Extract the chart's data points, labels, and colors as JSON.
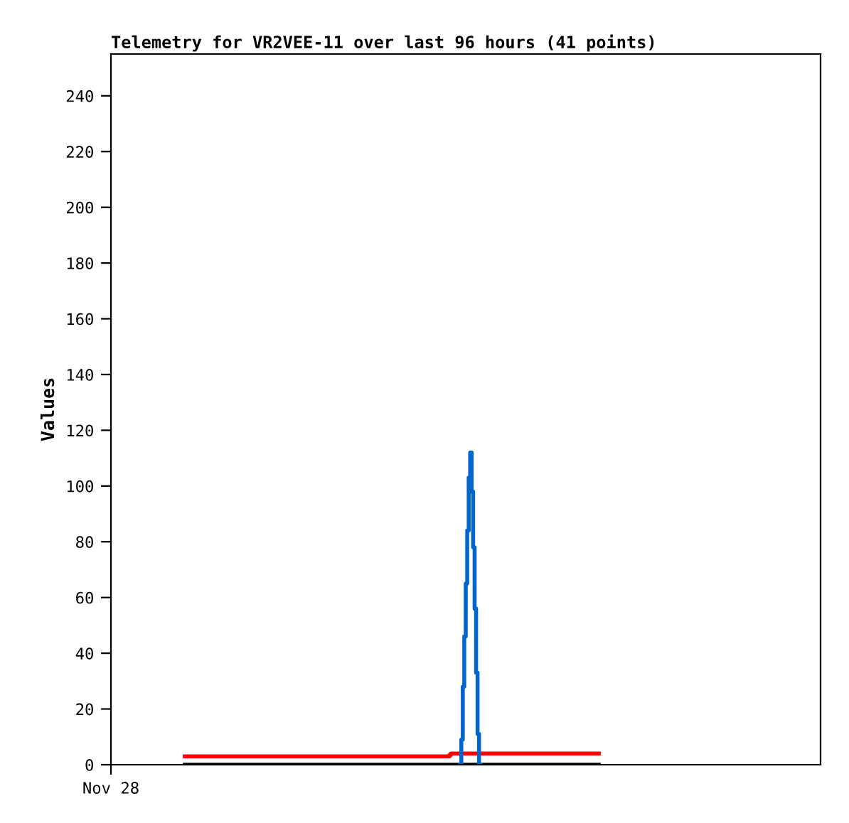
{
  "chart_data": {
    "type": "step",
    "title": "Telemetry for VR2VEE-11 over last 96 hours (41 points)",
    "ylabel": "Values",
    "categories": [
      "Nov 28",
      null,
      null,
      null,
      null,
      null,
      null,
      null,
      null,
      null,
      null,
      null,
      null,
      null,
      null,
      null,
      null,
      null,
      null,
      null,
      null,
      null,
      null,
      null,
      null,
      null,
      null,
      null,
      null,
      null,
      null,
      null,
      null,
      null,
      null,
      null,
      null,
      null,
      null,
      null,
      null,
      null,
      null,
      null,
      null,
      null,
      null,
      null,
      null,
      null,
      null,
      null,
      null,
      null,
      null,
      null,
      null,
      null,
      null,
      null,
      null,
      null,
      null,
      null,
      null,
      null,
      null,
      null,
      null,
      null,
      null,
      null,
      null,
      null,
      null,
      null,
      null,
      null,
      null,
      null,
      null,
      null,
      null,
      null,
      null,
      null,
      null,
      null,
      null,
      null,
      null,
      null,
      null,
      null,
      null,
      null,
      null,
      null,
      null,
      null,
      null,
      null,
      null,
      null,
      null,
      null,
      null,
      null,
      null,
      null,
      null,
      null,
      null,
      null,
      null,
      null,
      null,
      null,
      null,
      null,
      null,
      null,
      null,
      null,
      null,
      null,
      null,
      null,
      null,
      null,
      null,
      null,
      null,
      null,
      null,
      null,
      null,
      null,
      null,
      null,
      null,
      null,
      null,
      null,
      null,
      null,
      null,
      null,
      null,
      null,
      null,
      null,
      null,
      null,
      null,
      null,
      null,
      null,
      null,
      null,
      null,
      null,
      null,
      null,
      null,
      null,
      null,
      null,
      null,
      null,
      null,
      null,
      null,
      null,
      null,
      null,
      null,
      null,
      null,
      null,
      null,
      null,
      null,
      null,
      null,
      null,
      null,
      null,
      null,
      null,
      null,
      null,
      null,
      null,
      null,
      null,
      null,
      null,
      null,
      null,
      null,
      null,
      null,
      null,
      null,
      null,
      null,
      null,
      null,
      null,
      null,
      null,
      null,
      null,
      null,
      null,
      null,
      null,
      null,
      null,
      null,
      null,
      null,
      null,
      null,
      null,
      null,
      null,
      null,
      null,
      null,
      null,
      null,
      null,
      null,
      null,
      null,
      null,
      null,
      null,
      null,
      null,
      null,
      null,
      null,
      null,
      null,
      null,
      null,
      null,
      null,
      null,
      null,
      null,
      null,
      null,
      null,
      null,
      null,
      null,
      null,
      null,
      null,
      null,
      null,
      null,
      null,
      null,
      null,
      null,
      null,
      null,
      null,
      null,
      null,
      null,
      null,
      null,
      null,
      null,
      null,
      null,
      null,
      null,
      null,
      null,
      null,
      null,
      null,
      null,
      null,
      null,
      null,
      null,
      null,
      null,
      null,
      null,
      null,
      null,
      null,
      null,
      null,
      null,
      null,
      null,
      null,
      null,
      null,
      null,
      null,
      null,
      null,
      null,
      null,
      null,
      null,
      null,
      null,
      null,
      null,
      null,
      null,
      null,
      null,
      null,
      null,
      null,
      null,
      null,
      null,
      null,
      null,
      null,
      null,
      null,
      null,
      null,
      null,
      null,
      null,
      null,
      null,
      null,
      null,
      null,
      null,
      null,
      null,
      null,
      null,
      null,
      null,
      null,
      null,
      null,
      null,
      null,
      null,
      null,
      null,
      null,
      null,
      null,
      null,
      null,
      null,
      null,
      null,
      null,
      null,
      null,
      null,
      null,
      null,
      null,
      null,
      null,
      null,
      null,
      null,
      null,
      null,
      null,
      null,
      null,
      null,
      null,
      null,
      null,
      null,
      null,
      null,
      null,
      null,
      null,
      null,
      null,
      null,
      null,
      null,
      null,
      null,
      null,
      null,
      null,
      null,
      null,
      null,
      null,
      null,
      null,
      null,
      null,
      null,
      null,
      null,
      null,
      null,
      null,
      null,
      null,
      null,
      null,
      null,
      null,
      null,
      null,
      null,
      null,
      null,
      null,
      null,
      null,
      null,
      null,
      null,
      null,
      null,
      null,
      null,
      null,
      null,
      null,
      null,
      null,
      null,
      null,
      null,
      null,
      null,
      null,
      null,
      null,
      null,
      null,
      null,
      null,
      null,
      null,
      null,
      null,
      null,
      null,
      null,
      null,
      null,
      null,
      null,
      null,
      null,
      null,
      null,
      null,
      null,
      null,
      null,
      null,
      null,
      null,
      null
    ],
    "ylim": [
      0,
      255
    ],
    "yticks": [
      0,
      20,
      40,
      60,
      80,
      100,
      120,
      140,
      160,
      180,
      200,
      220,
      240
    ],
    "grid": false,
    "legend": false,
    "series": [
      {
        "color": "#ff0000",
        "values": [
          null,
          null,
          null,
          null,
          null,
          null,
          null,
          null,
          null,
          null,
          null,
          null,
          null,
          null,
          null,
          null,
          null,
          null,
          null,
          null,
          null,
          null,
          null,
          null,
          null,
          null,
          null,
          null,
          null,
          null,
          null,
          null,
          null,
          null,
          null,
          null,
          null,
          null,
          null,
          null,
          null,
          null,
          null,
          null,
          null,
          null,
          null,
          null,
          null,
          null,
          3,
          3,
          3,
          3,
          3,
          3,
          3,
          3,
          3,
          3,
          3,
          3,
          3,
          3,
          3,
          3,
          3,
          3,
          3,
          3,
          3,
          3,
          3,
          3,
          3,
          3,
          3,
          3,
          3,
          3,
          3,
          3,
          3,
          3,
          3,
          3,
          3,
          3,
          3,
          3,
          3,
          3,
          3,
          3,
          3,
          3,
          3,
          3,
          3,
          3,
          3,
          3,
          3,
          3,
          3,
          3,
          3,
          3,
          3,
          3,
          3,
          3,
          3,
          3,
          3,
          3,
          3,
          3,
          3,
          3,
          3,
          3,
          3,
          3,
          3,
          3,
          3,
          3,
          3,
          3,
          3,
          3,
          3,
          3,
          3,
          3,
          3,
          3,
          3,
          3,
          3,
          3,
          3,
          3,
          3,
          3,
          3,
          3,
          3,
          3,
          3,
          3,
          3,
          3,
          3,
          3,
          3,
          3,
          3,
          3,
          3,
          3,
          3,
          3,
          3,
          3,
          3,
          3,
          3,
          3,
          3,
          3,
          3,
          3,
          3,
          3,
          3,
          3,
          3,
          3,
          3,
          3,
          3,
          3,
          3,
          3,
          3,
          3,
          3,
          3,
          3,
          3,
          3,
          3,
          3,
          3,
          3,
          3,
          3,
          3,
          3,
          3,
          3,
          3,
          3,
          3,
          3,
          3,
          3,
          3,
          3,
          3,
          3,
          3,
          3,
          3,
          3,
          3,
          3,
          3,
          3,
          3,
          3,
          3,
          3,
          3,
          3,
          3,
          3,
          3.5,
          4,
          4,
          4,
          4,
          4,
          4,
          4,
          4,
          4,
          4,
          4,
          4,
          4,
          4,
          4,
          4,
          4,
          4,
          4,
          4,
          4,
          4,
          4,
          4,
          4,
          4,
          4,
          4,
          4,
          4,
          4,
          4,
          4,
          4,
          4,
          4,
          4,
          4,
          4,
          4,
          4,
          4,
          4,
          4,
          4,
          4,
          4,
          4,
          4,
          4,
          4,
          4,
          4,
          4,
          4,
          4,
          4,
          4,
          4,
          4,
          4,
          4,
          4,
          4,
          4,
          4,
          4,
          4,
          4,
          4,
          4,
          4,
          4,
          4,
          4,
          4,
          4,
          4,
          4,
          4,
          4,
          4,
          4,
          4,
          4,
          4,
          4,
          4,
          4,
          4,
          4,
          4,
          4,
          4,
          4,
          4,
          4,
          4,
          4,
          4,
          null,
          null,
          null,
          null,
          null,
          null,
          null,
          null,
          null,
          null,
          null,
          null,
          null,
          null,
          null,
          null,
          null,
          null,
          null,
          null,
          null,
          null,
          null,
          null,
          null,
          null,
          null,
          null,
          null,
          null,
          null,
          null,
          null,
          null,
          null,
          null,
          null,
          null,
          null,
          null,
          null,
          null,
          null,
          null,
          null,
          null,
          null,
          null,
          null,
          null,
          null,
          null,
          null,
          null,
          null,
          null,
          null,
          null,
          null,
          null,
          null,
          null,
          null,
          null,
          null,
          null,
          null,
          null,
          null,
          null,
          null,
          null,
          null,
          null,
          null,
          null,
          null,
          null,
          null,
          null,
          null,
          null,
          null,
          null,
          null,
          null,
          null,
          null,
          null,
          null,
          null,
          null,
          null,
          null,
          null,
          null,
          null,
          null,
          null,
          null,
          null,
          null,
          null,
          null,
          null,
          null,
          null,
          null,
          null,
          null,
          null,
          null,
          null,
          null,
          null,
          null,
          null,
          null,
          null,
          null,
          null,
          null,
          null,
          null,
          null,
          null,
          null,
          null,
          null,
          null,
          null,
          null,
          null,
          null,
          null,
          null,
          null,
          null,
          null,
          null,
          null,
          null,
          null,
          null,
          null,
          null,
          null,
          null,
          null,
          null,
          null
        ]
      },
      {
        "color": "#000000",
        "values": [
          null,
          null,
          null,
          null,
          null,
          null,
          null,
          null,
          null,
          null,
          null,
          null,
          null,
          null,
          null,
          null,
          null,
          null,
          null,
          null,
          null,
          null,
          null,
          null,
          null,
          null,
          null,
          null,
          null,
          null,
          null,
          null,
          null,
          null,
          null,
          null,
          null,
          null,
          null,
          null,
          null,
          null,
          null,
          null,
          null,
          null,
          null,
          null,
          null,
          null,
          0,
          0,
          0,
          0,
          0,
          0,
          0,
          0,
          0,
          0,
          0,
          0,
          0,
          0,
          0,
          0,
          0,
          0,
          0,
          0,
          0,
          0,
          0,
          0,
          0,
          0,
          0,
          0,
          0,
          0,
          0,
          0,
          0,
          0,
          0,
          0,
          0,
          0,
          0,
          0,
          0,
          0,
          0,
          0,
          0,
          0,
          0,
          0,
          0,
          0,
          0,
          0,
          0,
          0,
          0,
          0,
          0,
          0,
          0,
          0,
          0,
          0,
          0,
          0,
          0,
          0,
          0,
          0,
          0,
          0,
          0,
          0,
          0,
          0,
          0,
          0,
          0,
          0,
          0,
          0,
          0,
          0,
          0,
          0,
          0,
          0,
          0,
          0,
          0,
          0,
          0,
          0,
          0,
          0,
          0,
          0,
          0,
          0,
          0,
          0,
          0,
          0,
          0,
          0,
          0,
          0,
          0,
          0,
          0,
          0,
          0,
          0,
          0,
          0,
          0,
          0,
          0,
          0,
          0,
          0,
          0,
          0,
          0,
          0,
          0,
          0,
          0,
          0,
          0,
          0,
          0,
          0,
          0,
          0,
          0,
          0,
          0,
          0,
          0,
          0,
          0,
          0,
          0,
          0,
          0,
          0,
          0,
          0,
          0,
          0,
          0,
          0,
          0,
          0,
          0,
          0,
          0,
          0,
          0,
          0,
          0,
          0,
          0,
          0,
          0,
          0,
          0,
          0,
          0,
          0,
          0,
          0,
          0,
          0,
          0,
          0,
          0,
          0,
          0,
          0,
          0,
          0,
          0,
          0,
          0,
          0,
          0,
          0,
          0,
          0,
          0,
          0,
          0,
          0,
          0,
          0,
          0,
          0,
          0,
          0,
          0,
          0,
          0,
          0,
          0,
          0,
          0,
          0,
          0,
          0,
          0,
          0,
          0,
          0,
          0,
          0,
          0,
          0,
          0,
          0,
          0,
          0,
          0,
          0,
          0,
          0,
          0,
          0,
          0,
          0,
          0,
          0,
          0,
          0,
          0,
          0,
          0,
          0,
          0,
          0,
          0,
          0,
          0,
          0,
          0,
          0,
          0,
          0,
          0,
          0,
          0,
          0,
          0,
          0,
          0,
          0,
          0,
          0,
          0,
          0,
          0,
          0,
          0,
          0,
          0,
          0,
          0,
          0,
          0,
          0,
          0,
          0,
          0,
          0,
          0,
          0,
          0,
          0,
          0,
          0,
          null,
          null,
          null,
          null,
          null,
          null,
          null,
          null,
          null,
          null,
          null,
          null,
          null,
          null,
          null,
          null,
          null,
          null,
          null,
          null,
          null,
          null,
          null,
          null,
          null,
          null,
          null,
          null,
          null,
          null,
          null,
          null,
          null,
          null,
          null,
          null,
          null,
          null,
          null,
          null,
          null,
          null,
          null,
          null,
          null,
          null,
          null,
          null,
          null,
          null,
          null,
          null,
          null,
          null,
          null,
          null,
          null,
          null,
          null,
          null,
          null,
          null,
          null,
          null,
          null,
          null,
          null,
          null,
          null,
          null,
          null,
          null,
          null,
          null,
          null,
          null,
          null,
          null,
          null,
          null,
          null,
          null,
          null,
          null,
          null,
          null,
          null,
          null,
          null,
          null,
          null,
          null,
          null,
          null,
          null,
          null,
          null,
          null,
          null,
          null,
          null,
          null,
          null,
          null,
          null,
          null,
          null,
          null,
          null,
          null,
          null,
          null,
          null,
          null,
          null,
          null,
          null,
          null,
          null,
          null,
          null,
          null,
          null,
          null,
          null,
          null,
          null,
          null,
          null,
          null,
          null,
          null,
          null,
          null,
          null,
          null,
          null,
          null,
          null,
          null,
          null,
          null,
          null,
          null,
          null,
          null,
          null,
          null,
          null,
          null,
          null
        ]
      },
      {
        "color": "#0066cc",
        "values": [
          null,
          null,
          null,
          null,
          null,
          null,
          null,
          null,
          null,
          null,
          null,
          null,
          null,
          null,
          null,
          null,
          null,
          null,
          null,
          null,
          null,
          null,
          null,
          null,
          null,
          null,
          null,
          null,
          null,
          null,
          null,
          null,
          null,
          null,
          null,
          null,
          null,
          null,
          null,
          null,
          null,
          null,
          null,
          null,
          null,
          null,
          null,
          null,
          null,
          null,
          null,
          null,
          null,
          null,
          null,
          null,
          null,
          null,
          null,
          null,
          null,
          null,
          null,
          null,
          null,
          null,
          null,
          null,
          null,
          null,
          null,
          null,
          null,
          null,
          null,
          null,
          null,
          null,
          null,
          null,
          null,
          null,
          null,
          null,
          null,
          null,
          null,
          null,
          null,
          null,
          null,
          null,
          null,
          null,
          null,
          null,
          null,
          null,
          null,
          null,
          null,
          null,
          null,
          null,
          null,
          null,
          null,
          null,
          null,
          null,
          null,
          null,
          null,
          null,
          null,
          null,
          null,
          null,
          null,
          null,
          null,
          null,
          null,
          null,
          null,
          null,
          null,
          null,
          null,
          null,
          null,
          null,
          null,
          null,
          null,
          null,
          null,
          null,
          null,
          null,
          null,
          null,
          null,
          null,
          null,
          null,
          null,
          null,
          null,
          null,
          null,
          null,
          null,
          null,
          null,
          null,
          null,
          null,
          null,
          null,
          null,
          null,
          null,
          null,
          null,
          null,
          null,
          null,
          null,
          null,
          null,
          null,
          null,
          null,
          null,
          null,
          null,
          null,
          null,
          null,
          null,
          null,
          null,
          null,
          null,
          null,
          null,
          null,
          null,
          null,
          null,
          null,
          null,
          null,
          null,
          null,
          null,
          null,
          null,
          null,
          null,
          null,
          null,
          null,
          null,
          null,
          null,
          null,
          null,
          null,
          null,
          null,
          null,
          null,
          null,
          null,
          null,
          null,
          null,
          null,
          null,
          null,
          null,
          null,
          null,
          null,
          null,
          null,
          null,
          null,
          null,
          null,
          null,
          null,
          null,
          null,
          0,
          9,
          28,
          46,
          65,
          84,
          103,
          112,
          98,
          78,
          56,
          33,
          11,
          0,
          null,
          null,
          null,
          null,
          null,
          null,
          null,
          null,
          null,
          null,
          null,
          null,
          null,
          null,
          null,
          null,
          null,
          null,
          null,
          null,
          null,
          null,
          null,
          null,
          null,
          null,
          null,
          null,
          null,
          null,
          null,
          null,
          null,
          null,
          null,
          null,
          null,
          null,
          null,
          null,
          null,
          null,
          null,
          null,
          null,
          null,
          null,
          null,
          null,
          null,
          null,
          null,
          null,
          null,
          null,
          null,
          null,
          null,
          null,
          null,
          null,
          null,
          null,
          null,
          null,
          null,
          null,
          null,
          null,
          null,
          null,
          null,
          null,
          null,
          null,
          null,
          null,
          null,
          null,
          null,
          null,
          null,
          null,
          null,
          null,
          null,
          null,
          null,
          null,
          null,
          null,
          null,
          null,
          null,
          null,
          null,
          null,
          null,
          null,
          null,
          null,
          null,
          null,
          null,
          null,
          null,
          null,
          null,
          null,
          null,
          null,
          null,
          null,
          null,
          null,
          null,
          null,
          null,
          null,
          null,
          null,
          null,
          null,
          null,
          null,
          null,
          null,
          null,
          null,
          null,
          null,
          null,
          null,
          null,
          null,
          null,
          null,
          null,
          null,
          null,
          null,
          null,
          null,
          null,
          null,
          null,
          null,
          null,
          null,
          null,
          null,
          null,
          null,
          null,
          null,
          null,
          null,
          null,
          null,
          null,
          null,
          null,
          null,
          null,
          null,
          null,
          null,
          null,
          null,
          null,
          null,
          null,
          null,
          null,
          null,
          null,
          null,
          null,
          null,
          null,
          null,
          null,
          null,
          null,
          null,
          null,
          null,
          null,
          null,
          null,
          null,
          null,
          null,
          null,
          null,
          null,
          null,
          null,
          null,
          null,
          null,
          null,
          null,
          null,
          null,
          null,
          null,
          null,
          null,
          null,
          null,
          null,
          null,
          null,
          null,
          null,
          null,
          null,
          null,
          null,
          null,
          null,
          null,
          null,
          null,
          null,
          null,
          null,
          null,
          null,
          null
        ]
      }
    ]
  }
}
